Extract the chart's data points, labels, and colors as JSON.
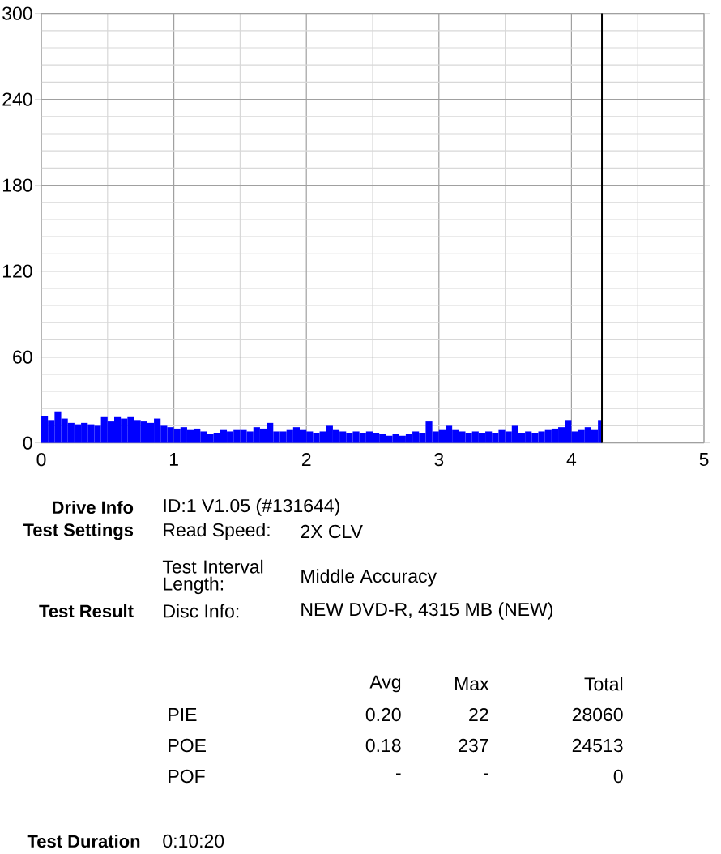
{
  "chart_data": {
    "type": "histogram",
    "bins": [
      0,
      0.05,
      0.1,
      0.15,
      0.2,
      0.25,
      0.3,
      0.35,
      0.4,
      0.45,
      0.5,
      0.55,
      0.6,
      0.65,
      0.7,
      0.75,
      0.8,
      0.85,
      0.9,
      0.95,
      1,
      1.05,
      1.1,
      1.15,
      1.2,
      1.25,
      1.3,
      1.35,
      1.4,
      1.45,
      1.5,
      1.55,
      1.6,
      1.65,
      1.7,
      1.75,
      1.8,
      1.85,
      1.9,
      1.95,
      2,
      2.05,
      2.1,
      2.15,
      2.2,
      2.25,
      2.3,
      2.35,
      2.4,
      2.45,
      2.5,
      2.55,
      2.6,
      2.65,
      2.7,
      2.75,
      2.8,
      2.85,
      2.9,
      2.95,
      3,
      3.05,
      3.1,
      3.15,
      3.2,
      3.25,
      3.3,
      3.35,
      3.4,
      3.45,
      3.5,
      3.55,
      3.6,
      3.65,
      3.7,
      3.75,
      3.8,
      3.85,
      3.9,
      3.95,
      4,
      4.05,
      4.1,
      4.15,
      4.2,
      4.23
    ],
    "values": [
      19,
      16,
      22,
      17,
      14,
      13,
      14,
      13,
      12,
      18,
      15,
      18,
      17,
      18,
      16,
      15,
      14,
      17,
      12,
      11,
      10,
      11,
      9,
      10,
      8,
      6,
      7,
      9,
      8,
      9,
      9,
      8,
      11,
      10,
      14,
      8,
      8,
      9,
      11,
      9,
      8,
      7,
      8,
      12,
      9,
      8,
      7,
      8,
      7,
      8,
      7,
      6,
      5,
      6,
      5,
      6,
      8,
      7,
      15,
      8,
      9,
      12,
      9,
      8,
      7,
      8,
      7,
      8,
      7,
      9,
      8,
      12,
      7,
      8,
      7,
      8,
      9,
      10,
      11,
      16,
      8,
      9,
      11,
      9,
      16
    ],
    "color": "#0000ff",
    "xlim": [
      0,
      5
    ],
    "ylim": [
      0,
      300
    ],
    "xticks": [
      0,
      {
        "value": 0.5,
        "label": null
      },
      1,
      {
        "value": 1.5,
        "label": null
      },
      2,
      {
        "value": 2.5,
        "label": null
      },
      3,
      {
        "value": 3.5,
        "label": null
      },
      4,
      {
        "value": 4.5,
        "label": null
      },
      5
    ],
    "yticks": [
      0,
      {
        "value": 12,
        "label": null
      },
      {
        "value": 24,
        "label": null
      },
      {
        "value": 36,
        "label": null
      },
      {
        "value": 48,
        "label": null
      },
      60,
      {
        "value": 72,
        "label": null
      },
      {
        "value": 84,
        "label": null
      },
      {
        "value": 96,
        "label": null
      },
      {
        "value": 108,
        "label": null
      },
      120,
      {
        "value": 132,
        "label": null
      },
      {
        "value": 144,
        "label": null
      },
      {
        "value": 156,
        "label": null
      },
      {
        "value": 168,
        "label": null
      },
      180,
      {
        "value": 192,
        "label": null
      },
      {
        "value": 204,
        "label": null
      },
      {
        "value": 216,
        "label": null
      },
      {
        "value": 228,
        "label": null
      },
      240,
      {
        "value": 252,
        "label": null
      },
      {
        "value": 264,
        "label": null
      },
      {
        "value": 276,
        "label": null
      },
      {
        "value": 288,
        "label": null
      },
      300
    ],
    "grid": true,
    "ref_lines": [
      {
        "axis": "x",
        "value": 4.23,
        "color": "#000000"
      }
    ],
    "annotations": [
      "Drive Info",
      "ID:1 V1.05 (#131644)",
      "Test Settings",
      "Read Speed:",
      "2X CLV",
      "Test Interval Length:",
      "Middle Accuracy",
      "Test Result",
      "Disc Info:",
      "NEW DVD-R, 4315 MB (NEW)",
      "Avg",
      "Max",
      "Total",
      "PIE",
      "0.20",
      "22",
      "28060",
      "POE",
      "0.18",
      "237",
      "24513",
      "POF",
      "-",
      "-",
      "0",
      "Test Duration",
      "0:10:20"
    ]
  }
}
